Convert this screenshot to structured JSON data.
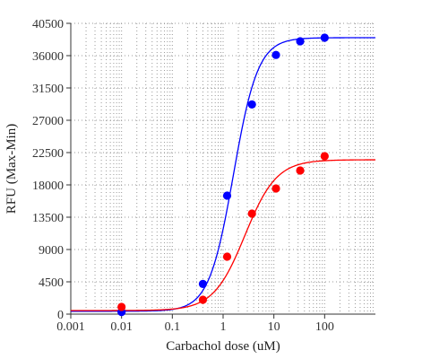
{
  "chart_data": {
    "type": "scatter",
    "title": "",
    "xlabel": "Carbachol dose (uM)",
    "ylabel": "RFU (Max-Min)",
    "x_scale": "log",
    "xlim": [
      0.001,
      1000
    ],
    "ylim": [
      0,
      40500
    ],
    "x_ticks": [
      0.001,
      0.01,
      0.1,
      1,
      10,
      100
    ],
    "x_tick_labels": [
      "0.001",
      "0.01",
      "0.1",
      "1",
      "10",
      "100"
    ],
    "y_ticks": [
      0,
      4500,
      9000,
      13500,
      18000,
      22500,
      27000,
      31500,
      36000,
      40500
    ],
    "y_tick_labels": [
      "0",
      "4500",
      "9000",
      "13500",
      "18000",
      "22500",
      "27000",
      "31500",
      "36000",
      "40500"
    ],
    "grid": true,
    "legend": "none",
    "series": [
      {
        "color": "#0000ff",
        "x": [
          0.01,
          0.4,
          1.2,
          3.7,
          11,
          33,
          100
        ],
        "y": [
          300,
          4200,
          16500,
          29200,
          36100,
          38000,
          38500
        ],
        "fit": {
          "model": "4PL",
          "bottom": 400,
          "top": 38500,
          "ec50": 1.6,
          "hill": 1.8
        }
      },
      {
        "color": "#ff0000",
        "x": [
          0.01,
          0.4,
          1.2,
          3.7,
          11,
          33,
          100
        ],
        "y": [
          1000,
          2000,
          8000,
          14000,
          17500,
          20000,
          22000
        ],
        "fit": {
          "model": "4PL",
          "bottom": 500,
          "top": 21500,
          "ec50": 2.7,
          "hill": 1.4
        }
      }
    ]
  }
}
